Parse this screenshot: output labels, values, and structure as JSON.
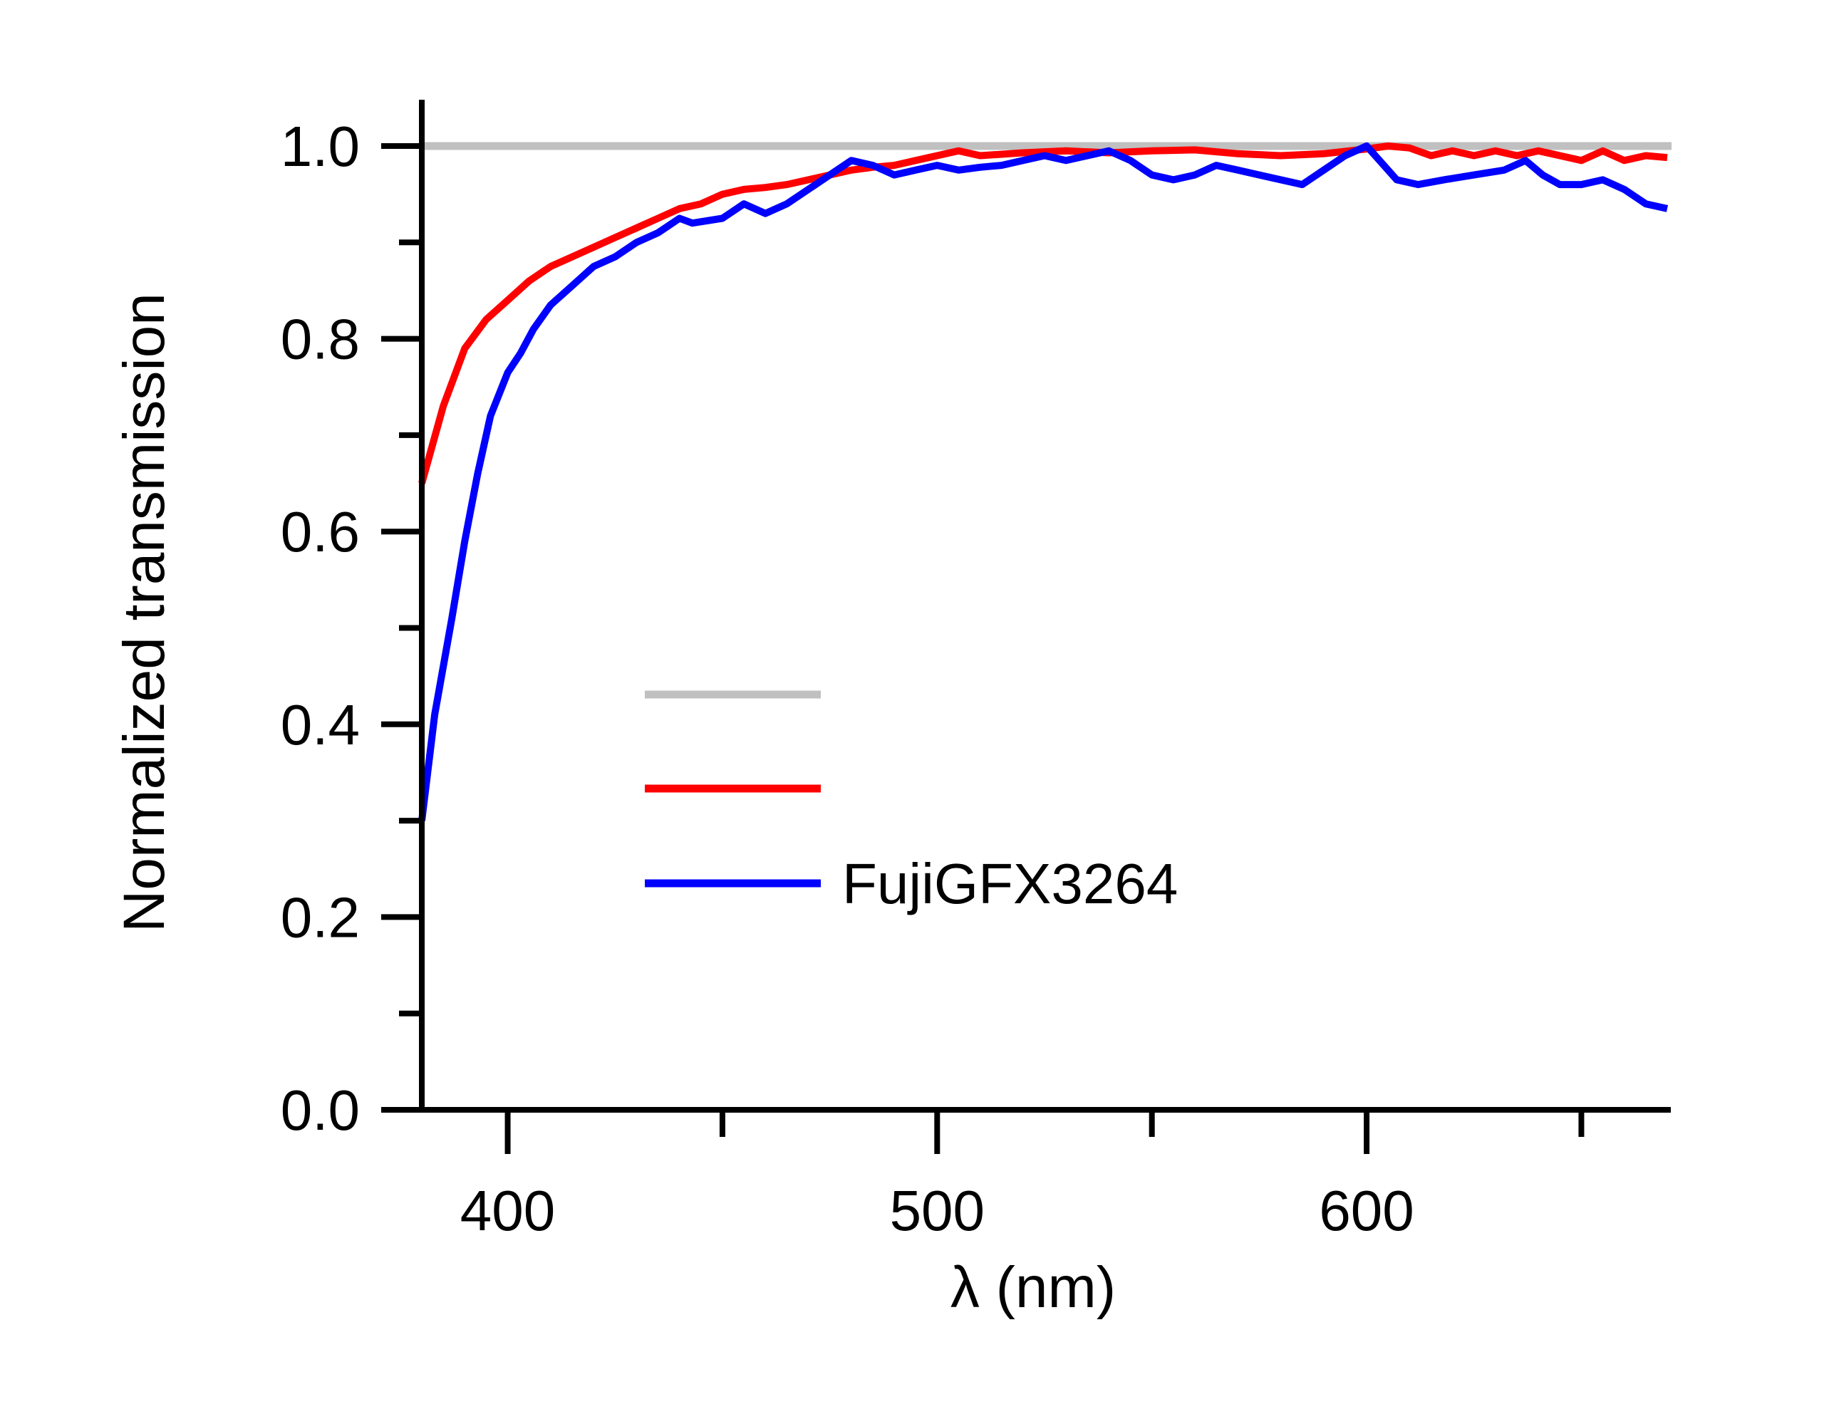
{
  "chart_data": {
    "type": "line",
    "title": "",
    "xlabel": "λ (nm)",
    "ylabel": "Normalized transmission",
    "xlim": [
      380,
      670
    ],
    "ylim": [
      0,
      1.05
    ],
    "x_ticks": [
      400,
      500,
      600
    ],
    "x_minor_ticks": [
      450,
      550,
      650
    ],
    "y_ticks": [
      "0.0",
      "0.2",
      "0.4",
      "0.6",
      "0.8",
      "1.0"
    ],
    "y_minor_ticks": [
      0.1,
      0.3,
      0.5,
      0.7,
      0.9
    ],
    "grid": false,
    "legend_position": "center-right",
    "colors": {
      "reference": "#c0c0c0",
      "red": "#ff0000",
      "blue": "#0000ff",
      "axis": "#000000"
    },
    "series": [
      {
        "name": "",
        "color": "#c0c0c0",
        "x": [
          380,
          670
        ],
        "y": [
          1.0,
          1.0
        ]
      },
      {
        "name": "",
        "color": "#ff0000",
        "x": [
          380,
          385,
          390,
          395,
          400,
          405,
          410,
          415,
          420,
          425,
          430,
          435,
          440,
          445,
          450,
          455,
          460,
          465,
          470,
          475,
          480,
          485,
          490,
          495,
          500,
          505,
          510,
          520,
          530,
          540,
          550,
          560,
          570,
          580,
          590,
          600,
          605,
          610,
          615,
          620,
          625,
          630,
          635,
          640,
          645,
          650,
          655,
          660,
          665,
          670
        ],
        "y": [
          0.65,
          0.73,
          0.79,
          0.82,
          0.84,
          0.86,
          0.875,
          0.885,
          0.895,
          0.905,
          0.915,
          0.925,
          0.935,
          0.94,
          0.95,
          0.955,
          0.957,
          0.96,
          0.965,
          0.97,
          0.975,
          0.978,
          0.98,
          0.985,
          0.99,
          0.995,
          0.99,
          0.993,
          0.995,
          0.993,
          0.995,
          0.996,
          0.992,
          0.99,
          0.992,
          0.997,
          1.0,
          0.998,
          0.99,
          0.995,
          0.99,
          0.995,
          0.99,
          0.995,
          0.99,
          0.985,
          0.995,
          0.985,
          0.99,
          0.988
        ]
      },
      {
        "name": "FujiGFX3264",
        "color": "#0000ff",
        "x": [
          380,
          383,
          387,
          390,
          393,
          396,
          400,
          403,
          406,
          410,
          415,
          420,
          425,
          430,
          435,
          440,
          443,
          450,
          455,
          460,
          465,
          470,
          475,
          480,
          485,
          490,
          495,
          500,
          505,
          510,
          515,
          520,
          525,
          530,
          535,
          540,
          545,
          550,
          555,
          560,
          565,
          570,
          575,
          580,
          585,
          590,
          595,
          600,
          603,
          607,
          612,
          618,
          625,
          632,
          637,
          641,
          645,
          650,
          655,
          660,
          665,
          670
        ],
        "y": [
          0.3,
          0.41,
          0.51,
          0.59,
          0.66,
          0.72,
          0.765,
          0.785,
          0.81,
          0.835,
          0.855,
          0.875,
          0.885,
          0.9,
          0.91,
          0.925,
          0.92,
          0.925,
          0.94,
          0.93,
          0.94,
          0.955,
          0.97,
          0.985,
          0.98,
          0.97,
          0.975,
          0.98,
          0.975,
          0.978,
          0.98,
          0.985,
          0.99,
          0.985,
          0.99,
          0.995,
          0.985,
          0.97,
          0.965,
          0.97,
          0.98,
          0.975,
          0.97,
          0.965,
          0.96,
          0.975,
          0.99,
          1.0,
          0.985,
          0.965,
          0.96,
          0.965,
          0.97,
          0.975,
          0.985,
          0.97,
          0.96,
          0.96,
          0.965,
          0.955,
          0.94,
          0.935
        ]
      }
    ]
  }
}
